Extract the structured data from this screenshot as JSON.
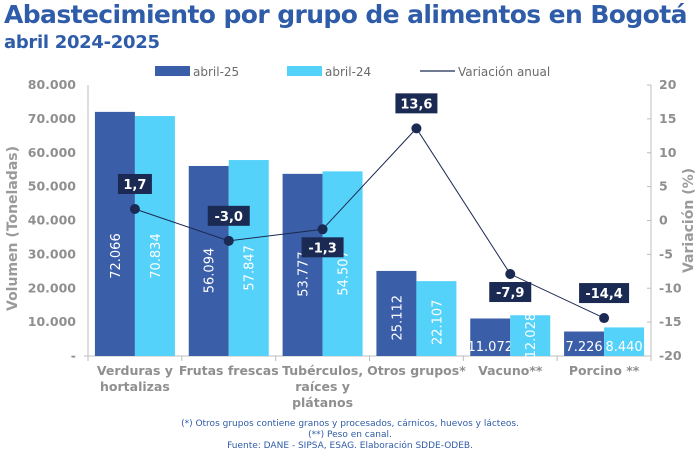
{
  "header": {
    "title": "Abastecimiento por grupo de alimentos en Bogotá",
    "subtitle": "abril 2024-2025"
  },
  "footnotes": [
    "(*) Otros grupos contiene granos y procesados, cárnicos, huevos y lácteos.",
    "(**) Peso en canal.",
    "Fuente: DANE - SIPSA, ESAG. Elaboración SDDE-ODEB."
  ],
  "chart_data": {
    "type": "bar",
    "title": "Abastecimiento por grupo de alimentos en Bogotá",
    "subtitle": "abril 2024-2025",
    "categories": [
      [
        "Verduras y",
        "hortalizas"
      ],
      [
        "Frutas frescas"
      ],
      [
        "Tubérculos,",
        "raíces y",
        "plátanos"
      ],
      [
        "Otros grupos*"
      ],
      [
        "Vacuno**"
      ],
      [
        "Porcino **"
      ]
    ],
    "series": [
      {
        "name": "abril-25",
        "type": "bar",
        "axis": "left",
        "color": "#3b5ea8",
        "values": [
          72066,
          56094,
          53777,
          25112,
          11072,
          7226
        ],
        "labels": [
          "72.066",
          "56.094",
          "53.777",
          "25.112",
          "11.072",
          "7.226"
        ]
      },
      {
        "name": "abril-24",
        "type": "bar",
        "axis": "left",
        "color": "#55d2fa",
        "values": [
          70834,
          57847,
          54507,
          22107,
          12028,
          8440
        ],
        "labels": [
          "70.834",
          "57.847",
          "54.507",
          "22.107",
          "12.028",
          "8.440"
        ]
      },
      {
        "name": "Variación anual",
        "type": "line",
        "axis": "right",
        "color": "#1b2a52",
        "values": [
          1.7,
          -3.0,
          -1.3,
          13.6,
          -7.9,
          -14.4
        ],
        "labels": [
          "1,7",
          "-3,0",
          "-1,3",
          "13,6",
          "-7,9",
          "-14,4"
        ]
      }
    ],
    "ylabel": "Volumen (Toneladas)",
    "ylim": [
      0,
      80000
    ],
    "yticks": [
      0,
      10000,
      20000,
      30000,
      40000,
      50000,
      60000,
      70000,
      80000
    ],
    "ytick_labels": [
      "-",
      "10.000",
      "20.000",
      "30.000",
      "40.000",
      "50.000",
      "60.000",
      "70.000",
      "80.000"
    ],
    "y2label": "Variación (%)",
    "y2lim": [
      -20,
      20
    ],
    "y2ticks": [
      -20,
      -15,
      -10,
      -5,
      0,
      5,
      10,
      15,
      20
    ],
    "y2tick_labels": [
      "-20",
      "-15",
      "-10",
      "-5",
      "0",
      "5",
      "10",
      "15",
      "20"
    ],
    "legend_position": "top",
    "grid": false
  }
}
